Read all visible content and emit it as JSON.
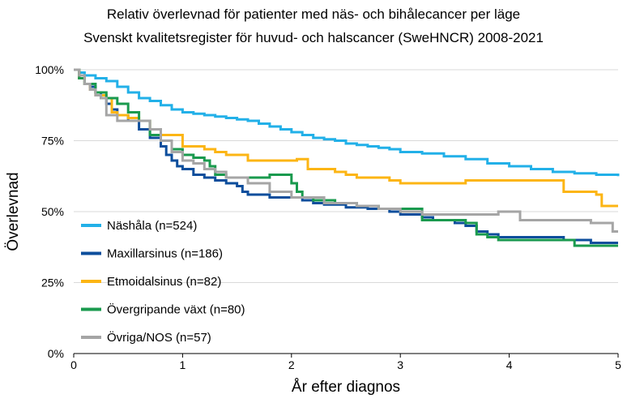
{
  "chart_data": {
    "type": "line",
    "title": "Relativ överlevnad för patienter med näs- och bihålecancer per läge",
    "subtitle": "Svenskt kvalitetsregister för huvud- och halscancer (SweHNCR) 2008-2021",
    "xlabel": "År efter diagnos",
    "ylabel": "Överlevnad",
    "xlim": [
      0,
      5
    ],
    "ylim": [
      0,
      100
    ],
    "x_ticks": [
      "0",
      "1",
      "2",
      "3",
      "4",
      "5"
    ],
    "y_ticks": [
      "0%",
      "25%",
      "50%",
      "75%",
      "100%"
    ],
    "grid": "horizontal",
    "legend_position": "bottom-left",
    "series": [
      {
        "name": "Näshåla (n=524)",
        "color": "#22b0e8",
        "points": [
          [
            0,
            100
          ],
          [
            0.05,
            99
          ],
          [
            0.1,
            98
          ],
          [
            0.2,
            97
          ],
          [
            0.3,
            96
          ],
          [
            0.4,
            94
          ],
          [
            0.5,
            92
          ],
          [
            0.6,
            90
          ],
          [
            0.7,
            89
          ],
          [
            0.8,
            87.5
          ],
          [
            0.9,
            86
          ],
          [
            1.0,
            85
          ],
          [
            1.1,
            84.5
          ],
          [
            1.2,
            84
          ],
          [
            1.3,
            83.5
          ],
          [
            1.4,
            83
          ],
          [
            1.5,
            82.5
          ],
          [
            1.6,
            82
          ],
          [
            1.7,
            81
          ],
          [
            1.8,
            80
          ],
          [
            1.9,
            79
          ],
          [
            2.0,
            78
          ],
          [
            2.1,
            77
          ],
          [
            2.2,
            76
          ],
          [
            2.3,
            75.5
          ],
          [
            2.4,
            75
          ],
          [
            2.5,
            74
          ],
          [
            2.6,
            73.5
          ],
          [
            2.7,
            73
          ],
          [
            2.8,
            72.5
          ],
          [
            2.9,
            72
          ],
          [
            3.0,
            71
          ],
          [
            3.2,
            70.5
          ],
          [
            3.4,
            69.5
          ],
          [
            3.6,
            68.5
          ],
          [
            3.8,
            67
          ],
          [
            4.0,
            66
          ],
          [
            4.2,
            65
          ],
          [
            4.4,
            64
          ],
          [
            4.6,
            63.5
          ],
          [
            4.8,
            63
          ],
          [
            5.0,
            62.5
          ]
        ]
      },
      {
        "name": "Maxillarsinus (n=186)",
        "color": "#0d4e9c",
        "points": [
          [
            0,
            100
          ],
          [
            0.05,
            97
          ],
          [
            0.1,
            95
          ],
          [
            0.15,
            94
          ],
          [
            0.2,
            92
          ],
          [
            0.25,
            90
          ],
          [
            0.3,
            88
          ],
          [
            0.35,
            86
          ],
          [
            0.4,
            84
          ],
          [
            0.5,
            82
          ],
          [
            0.6,
            79
          ],
          [
            0.7,
            76
          ],
          [
            0.8,
            73
          ],
          [
            0.85,
            70
          ],
          [
            0.9,
            68
          ],
          [
            0.95,
            66
          ],
          [
            1.0,
            65
          ],
          [
            1.1,
            63
          ],
          [
            1.2,
            62
          ],
          [
            1.3,
            61
          ],
          [
            1.4,
            60
          ],
          [
            1.5,
            59
          ],
          [
            1.55,
            57
          ],
          [
            1.6,
            56
          ],
          [
            1.8,
            55
          ],
          [
            2.0,
            55
          ],
          [
            2.1,
            54
          ],
          [
            2.2,
            53
          ],
          [
            2.3,
            52.5
          ],
          [
            2.5,
            51.5
          ],
          [
            2.7,
            51
          ],
          [
            2.9,
            50
          ],
          [
            3.0,
            49
          ],
          [
            3.2,
            48
          ],
          [
            3.3,
            47
          ],
          [
            3.5,
            46
          ],
          [
            3.6,
            45
          ],
          [
            3.7,
            43
          ],
          [
            3.8,
            42
          ],
          [
            3.9,
            41
          ],
          [
            4.0,
            41
          ],
          [
            4.2,
            41
          ],
          [
            4.4,
            41
          ],
          [
            4.5,
            40
          ],
          [
            4.7,
            40
          ],
          [
            4.75,
            39
          ],
          [
            5.0,
            39
          ]
        ]
      },
      {
        "name": "Etmoidalsinus (n=82)",
        "color": "#fcb514",
        "points": [
          [
            0,
            100
          ],
          [
            0.05,
            97
          ],
          [
            0.1,
            95
          ],
          [
            0.15,
            93
          ],
          [
            0.2,
            91
          ],
          [
            0.3,
            90
          ],
          [
            0.35,
            85
          ],
          [
            0.4,
            84
          ],
          [
            0.5,
            83
          ],
          [
            0.6,
            82
          ],
          [
            0.7,
            79
          ],
          [
            0.8,
            77
          ],
          [
            1.0,
            73
          ],
          [
            1.1,
            73
          ],
          [
            1.2,
            72
          ],
          [
            1.3,
            71
          ],
          [
            1.4,
            70
          ],
          [
            1.6,
            68
          ],
          [
            1.8,
            68
          ],
          [
            2.0,
            68
          ],
          [
            2.05,
            68.5
          ],
          [
            2.15,
            65
          ],
          [
            2.4,
            64
          ],
          [
            2.5,
            63
          ],
          [
            2.6,
            62
          ],
          [
            2.8,
            62
          ],
          [
            2.9,
            61
          ],
          [
            3.0,
            60
          ],
          [
            3.5,
            60
          ],
          [
            3.6,
            61
          ],
          [
            4.0,
            61
          ],
          [
            4.2,
            61
          ],
          [
            4.4,
            61
          ],
          [
            4.5,
            57
          ],
          [
            4.6,
            57
          ],
          [
            4.8,
            56
          ],
          [
            4.85,
            52
          ],
          [
            5.0,
            52
          ]
        ]
      },
      {
        "name": "Övergripande växt (n=80)",
        "color": "#1a9a4e",
        "points": [
          [
            0,
            100
          ],
          [
            0.05,
            97
          ],
          [
            0.1,
            95
          ],
          [
            0.2,
            92
          ],
          [
            0.3,
            90
          ],
          [
            0.4,
            88
          ],
          [
            0.5,
            85
          ],
          [
            0.6,
            82
          ],
          [
            0.7,
            77
          ],
          [
            0.8,
            75
          ],
          [
            0.9,
            72
          ],
          [
            1.0,
            70
          ],
          [
            1.1,
            69
          ],
          [
            1.2,
            68
          ],
          [
            1.25,
            66
          ],
          [
            1.3,
            63
          ],
          [
            1.4,
            62
          ],
          [
            1.6,
            62
          ],
          [
            1.8,
            63
          ],
          [
            1.9,
            63
          ],
          [
            2.0,
            60
          ],
          [
            2.05,
            57
          ],
          [
            2.1,
            55
          ],
          [
            2.2,
            54
          ],
          [
            2.4,
            53
          ],
          [
            2.6,
            52
          ],
          [
            2.8,
            51
          ],
          [
            3.0,
            51
          ],
          [
            3.1,
            51
          ],
          [
            3.2,
            47
          ],
          [
            3.3,
            47
          ],
          [
            3.5,
            47
          ],
          [
            3.6,
            46
          ],
          [
            3.7,
            42
          ],
          [
            3.8,
            41
          ],
          [
            3.9,
            40
          ],
          [
            4.0,
            40
          ],
          [
            4.2,
            40
          ],
          [
            4.4,
            40
          ],
          [
            4.5,
            40
          ],
          [
            4.6,
            38
          ],
          [
            5.0,
            38
          ]
        ]
      },
      {
        "name": "Övriga/NOS (n=57)",
        "color": "#a5a5a5",
        "points": [
          [
            0,
            100
          ],
          [
            0.05,
            98
          ],
          [
            0.1,
            95
          ],
          [
            0.15,
            93
          ],
          [
            0.2,
            91
          ],
          [
            0.25,
            90
          ],
          [
            0.3,
            84
          ],
          [
            0.4,
            82
          ],
          [
            0.6,
            82
          ],
          [
            0.7,
            79
          ],
          [
            0.8,
            75
          ],
          [
            0.9,
            71
          ],
          [
            1.0,
            68
          ],
          [
            1.1,
            67
          ],
          [
            1.2,
            65
          ],
          [
            1.3,
            64
          ],
          [
            1.4,
            62
          ],
          [
            1.6,
            60
          ],
          [
            1.8,
            57
          ],
          [
            2.0,
            55
          ],
          [
            2.2,
            55
          ],
          [
            2.3,
            53
          ],
          [
            2.5,
            53
          ],
          [
            2.6,
            52
          ],
          [
            2.8,
            51
          ],
          [
            3.0,
            50
          ],
          [
            3.2,
            49
          ],
          [
            3.5,
            49
          ],
          [
            3.8,
            49
          ],
          [
            3.9,
            50
          ],
          [
            4.0,
            50
          ],
          [
            4.1,
            47
          ],
          [
            4.2,
            47
          ],
          [
            4.5,
            47
          ],
          [
            4.7,
            47
          ],
          [
            4.75,
            46
          ],
          [
            4.9,
            46
          ],
          [
            4.95,
            43
          ],
          [
            5.0,
            43
          ]
        ]
      }
    ]
  }
}
